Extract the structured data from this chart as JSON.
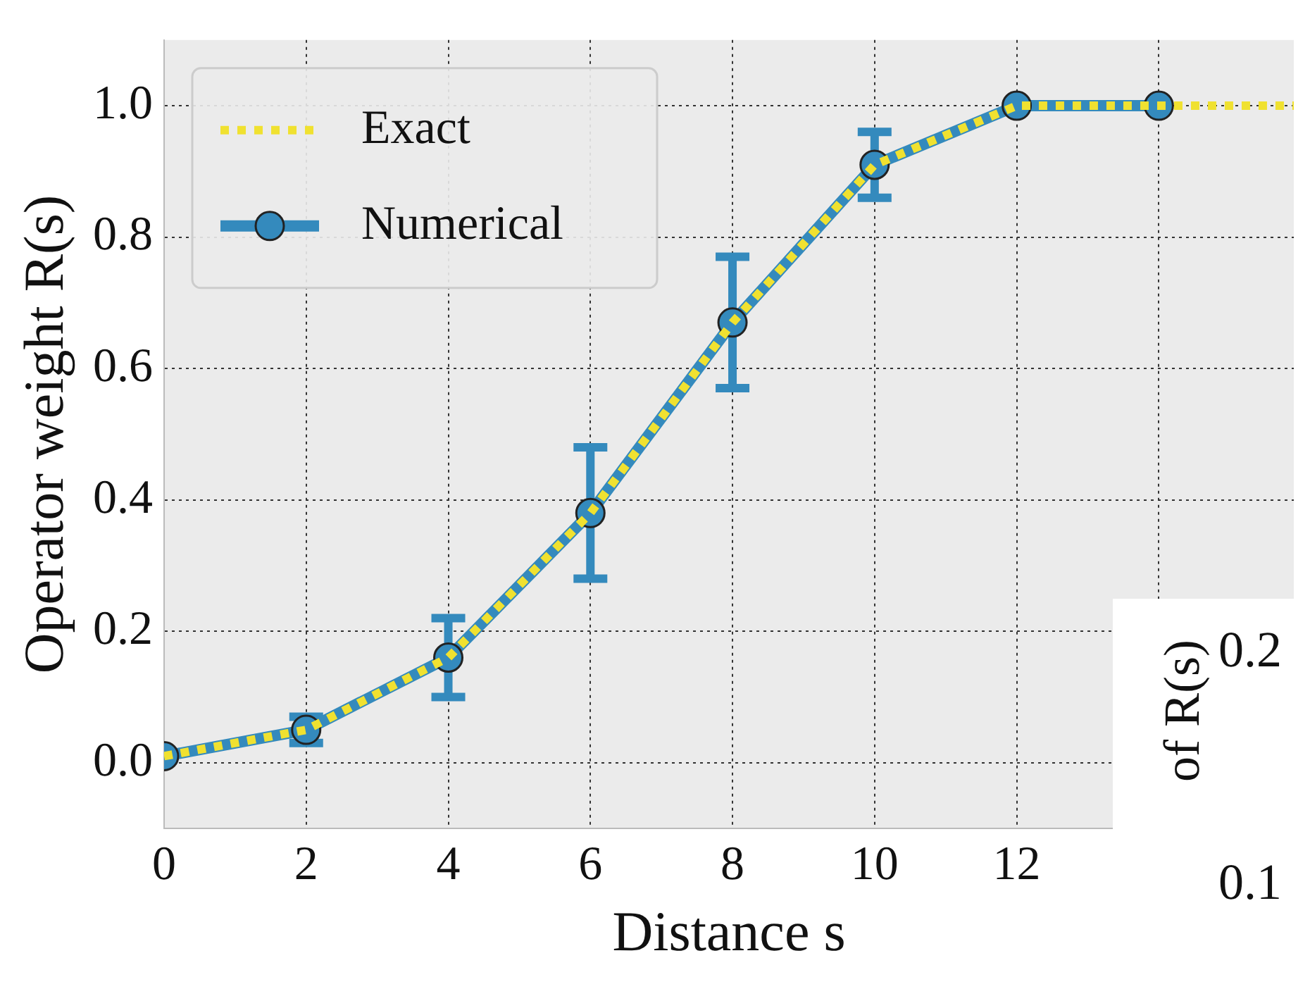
{
  "chart_data": [
    {
      "type": "line",
      "xlabel": "Distance s",
      "ylabel": "Operator weight R(s)",
      "xlim": [
        0,
        15.9
      ],
      "xticks": [
        0,
        2,
        4,
        6,
        8,
        10,
        12,
        {
          "value": 14,
          "label": null
        }
      ],
      "ylim": [
        -0.1,
        1.1
      ],
      "yticks": [
        {
          "value": 0,
          "label": "0.0"
        },
        0.2,
        0.4,
        0.6,
        0.8,
        {
          "value": 1,
          "label": "1.0"
        }
      ],
      "grid": true,
      "legend": "top left",
      "series": [
        {
          "name": "Numerical",
          "color": "#348abd",
          "marker": "circle",
          "line_style": "solid",
          "x": [
            0,
            2,
            4,
            6,
            8,
            10,
            12,
            14
          ],
          "values": [
            0.01,
            0.05,
            0.16,
            0.38,
            0.67,
            0.91,
            1.0,
            1.0
          ],
          "errors": [
            null,
            0.02,
            0.06,
            0.1,
            0.1,
            0.05,
            null,
            null
          ]
        },
        {
          "name": "Exact",
          "color": "#f0e130",
          "marker": "none",
          "line_style": "dotted",
          "x": [
            0,
            2,
            4,
            6,
            8,
            10,
            12,
            14,
            15.9
          ],
          "values": [
            0.01,
            0.05,
            0.16,
            0.38,
            0.67,
            0.91,
            1.0,
            1.0,
            1.0
          ]
        }
      ]
    },
    {
      "type": "other",
      "ylabel": "of R(s)",
      "annotations": [
        "0.2",
        "0.1"
      ]
    }
  ]
}
